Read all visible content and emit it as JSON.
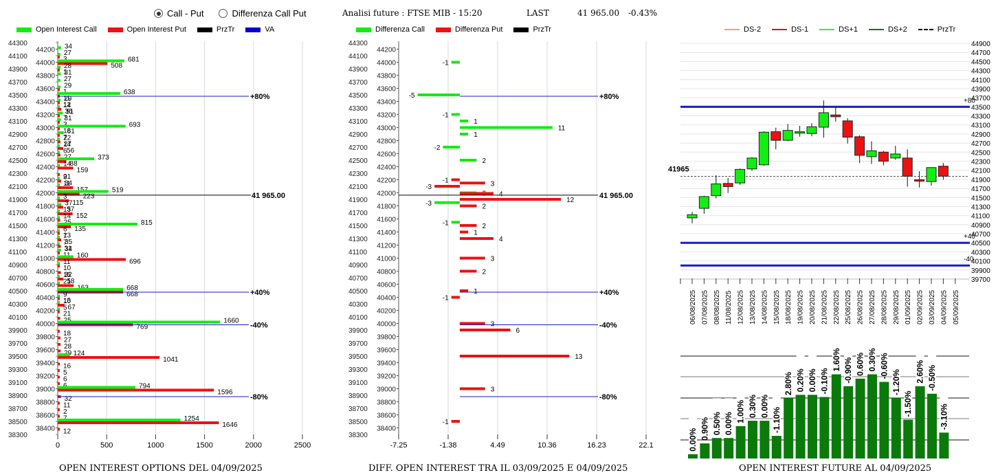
{
  "controls": {
    "mode_options": [
      {
        "label": "Call - Put",
        "selected": true
      },
      {
        "label": "Differenza Call Put",
        "selected": false
      }
    ]
  },
  "header": {
    "title": "Analisi future : FTSE MIB - 15:20",
    "last_label": "LAST",
    "last_value": "41 965.00",
    "change": "-0.43%"
  },
  "colors": {
    "call": "#11ee11",
    "put": "#ee1111",
    "prztr": "#000000",
    "va": "#1a1acc",
    "ds_minus2": "#f4a070",
    "ds_minus1": "#dd1111",
    "ds_plus1": "#33ee33",
    "ds_plus2": "#117711",
    "volume_bar": "#0a7a0a"
  },
  "chart_data": [
    {
      "type": "bar",
      "title": "OPEN INTEREST OPTIONS DEL 04/09/2025",
      "orientation": "horizontal",
      "legend": [
        "Open Interest Call",
        "Open Interest Put",
        "PrzTr",
        "VA"
      ],
      "legend_position": "top",
      "xlim": [
        0,
        2500
      ],
      "x_ticks": [
        "0",
        "500",
        "1000",
        "1500",
        "2000",
        "2500"
      ],
      "y_ticks_left": [
        "44300",
        "44100",
        "43900",
        "43700",
        "43500",
        "43300",
        "43100",
        "42900",
        "42700",
        "42500",
        "42300",
        "42100",
        "41900",
        "41700",
        "41500",
        "41300",
        "41100",
        "40900",
        "40700",
        "40500",
        "40300",
        "40100",
        "39900",
        "39700",
        "39500",
        "39300",
        "39100",
        "38900",
        "38700",
        "38500",
        "38300"
      ],
      "y_ticks_right": [
        "44200",
        "44000",
        "43800",
        "43600",
        "43400",
        "43200",
        "43000",
        "42800",
        "42600",
        "42400",
        "42200",
        "42000",
        "41800",
        "41600",
        "41400",
        "41200",
        "41000",
        "40800",
        "40600",
        "40400",
        "40200",
        "40000",
        "39800",
        "39600",
        "39400",
        "39200",
        "39000",
        "38800",
        "38600",
        "38400"
      ],
      "strikes": [
        {
          "strike": 44200,
          "call": 34,
          "put": 0
        },
        {
          "strike": 44100,
          "call": 27,
          "put": 3
        },
        {
          "strike": 44000,
          "call": 681,
          "put": 508
        },
        {
          "strike": 43900,
          "call": 28,
          "put": 1
        },
        {
          "strike": 43800,
          "call": 31,
          "put": 0
        },
        {
          "strike": 43700,
          "call": 27,
          "put": 0
        },
        {
          "strike": 43600,
          "call": 29,
          "put": 1
        },
        {
          "strike": 43500,
          "call": 638,
          "put": 11
        },
        {
          "strike": 43400,
          "call": 29,
          "put": 12
        },
        {
          "strike": 43300,
          "call": 14,
          "put": 36
        },
        {
          "strike": 43200,
          "call": 51,
          "put": 7
        },
        {
          "strike": 43100,
          "call": 31,
          "put": 3
        },
        {
          "strike": 43000,
          "call": 693,
          "put": 18
        },
        {
          "strike": 42900,
          "call": 61,
          "put": 7
        },
        {
          "strike": 42800,
          "call": 22,
          "put": 27
        },
        {
          "strike": 42700,
          "call": 14,
          "put": 56
        },
        {
          "strike": 42600,
          "call": 6,
          "put": 27
        },
        {
          "strike": 42500,
          "call": 373,
          "put": 88
        },
        {
          "strike": 42400,
          "call": 14,
          "put": 159
        },
        {
          "strike": 42300,
          "call": 0,
          "put": 21
        },
        {
          "strike": 42200,
          "call": 9,
          "put": 34
        },
        {
          "strike": 42100,
          "call": 11,
          "put": 157
        },
        {
          "strike": 42000,
          "call": 519,
          "put": 223
        },
        {
          "strike": 41900,
          "call": 3,
          "put": 115
        },
        {
          "strike": 41800,
          "call": 37,
          "put": 57
        },
        {
          "strike": 41700,
          "call": 13,
          "put": 152
        },
        {
          "strike": 41600,
          "call": 14,
          "put": 25
        },
        {
          "strike": 41500,
          "call": 815,
          "put": 135
        },
        {
          "strike": 41400,
          "call": 6,
          "put": 13
        },
        {
          "strike": 41300,
          "call": 7,
          "put": 35
        },
        {
          "strike": 41200,
          "call": 7,
          "put": 31
        },
        {
          "strike": 41100,
          "call": 34,
          "put": 11
        },
        {
          "strike": 41000,
          "call": 160,
          "put": 696
        },
        {
          "strike": 40900,
          "call": 11,
          "put": 10
        },
        {
          "strike": 40800,
          "call": 0,
          "put": 32
        },
        {
          "strike": 40700,
          "call": 15,
          "put": 58
        },
        {
          "strike": 40600,
          "call": 21,
          "put": 163
        },
        {
          "strike": 40500,
          "call": 668,
          "put": 668
        },
        {
          "strike": 40400,
          "call": 9,
          "put": 15
        },
        {
          "strike": 40300,
          "call": 10,
          "put": 67
        },
        {
          "strike": 40200,
          "call": 5,
          "put": 21
        },
        {
          "strike": 40100,
          "call": 0,
          "put": 25
        },
        {
          "strike": 40000,
          "call": 1660,
          "put": 769
        },
        {
          "strike": 39900,
          "call": 0,
          "put": 18
        },
        {
          "strike": 39800,
          "call": 0,
          "put": 27
        },
        {
          "strike": 39700,
          "call": 0,
          "put": 28
        },
        {
          "strike": 39600,
          "call": 0,
          "put": 29
        },
        {
          "strike": 39500,
          "call": 124,
          "put": 1041
        },
        {
          "strike": 39400,
          "call": 0,
          "put": 16
        },
        {
          "strike": 39300,
          "call": 0,
          "put": 5
        },
        {
          "strike": 39200,
          "call": 0,
          "put": 6
        },
        {
          "strike": 39100,
          "call": 0,
          "put": 6
        },
        {
          "strike": 39000,
          "call": 794,
          "put": 1596
        },
        {
          "strike": 38900,
          "call": 0,
          "put": 32
        },
        {
          "strike": 38800,
          "call": 0,
          "put": 11
        },
        {
          "strike": 38700,
          "call": 0,
          "put": 2
        },
        {
          "strike": 38600,
          "call": 0,
          "put": 7
        },
        {
          "strike": 38500,
          "call": 1254,
          "put": 1646
        },
        {
          "strike": 38400,
          "call": 0,
          "put": 12
        }
      ],
      "reference_lines": [
        {
          "label": "+80%",
          "level": 43500,
          "type": "va"
        },
        {
          "label": "41 965.00",
          "level": 41965,
          "type": "prztr"
        },
        {
          "label": "+40%",
          "level": 40500,
          "type": "va"
        },
        {
          "label": "-40%",
          "level": 40000,
          "type": "va"
        },
        {
          "label": "-80%",
          "level": 38900,
          "type": "va"
        }
      ]
    },
    {
      "type": "bar",
      "title": "DIFF. OPEN INTEREST TRA IL 03/09/2025 E 04/09/2025",
      "orientation": "horizontal",
      "legend": [
        "Differenza Call",
        "Differenza Put",
        "PrzTr"
      ],
      "legend_position": "top",
      "xlim": [
        -7.25,
        22.1
      ],
      "x_ticks": [
        "-7.25",
        "-1.38",
        "4.49",
        "10.36",
        "16.23",
        "22.1"
      ],
      "diffs": [
        {
          "strike": 44000,
          "series": "call",
          "value": -1
        },
        {
          "strike": 43500,
          "series": "call",
          "value": -5
        },
        {
          "strike": 43200,
          "series": "call",
          "value": -1
        },
        {
          "strike": 43100,
          "series": "call",
          "value": 1
        },
        {
          "strike": 43000,
          "series": "call",
          "value": 11
        },
        {
          "strike": 42900,
          "series": "call",
          "value": 1
        },
        {
          "strike": 42700,
          "series": "call",
          "value": -2
        },
        {
          "strike": 42500,
          "series": "call",
          "value": 2
        },
        {
          "strike": 42200,
          "series": "put",
          "value": -1
        },
        {
          "strike": 42150,
          "series": "put",
          "value": 3
        },
        {
          "strike": 42100,
          "series": "put",
          "value": -3
        },
        {
          "strike": 42000,
          "series": "call",
          "value": 2
        },
        {
          "strike": 41990,
          "series": "put",
          "value": 4
        },
        {
          "strike": 41900,
          "series": "put",
          "value": 12
        },
        {
          "strike": 41850,
          "series": "call",
          "value": -3
        },
        {
          "strike": 41800,
          "series": "put",
          "value": 2
        },
        {
          "strike": 41550,
          "series": "call",
          "value": -1
        },
        {
          "strike": 41500,
          "series": "put",
          "value": 2
        },
        {
          "strike": 41400,
          "series": "put",
          "value": 1
        },
        {
          "strike": 41300,
          "series": "put",
          "value": 4
        },
        {
          "strike": 41000,
          "series": "put",
          "value": 3
        },
        {
          "strike": 40800,
          "series": "put",
          "value": 2
        },
        {
          "strike": 40500,
          "series": "put",
          "value": 1
        },
        {
          "strike": 40400,
          "series": "put",
          "value": -1
        },
        {
          "strike": 40000,
          "series": "put",
          "value": 3
        },
        {
          "strike": 39900,
          "series": "put",
          "value": 6
        },
        {
          "strike": 39500,
          "series": "put",
          "value": 13
        },
        {
          "strike": 39000,
          "series": "put",
          "value": 3
        },
        {
          "strike": 38500,
          "series": "put",
          "value": -1
        }
      ],
      "reference_lines": [
        {
          "label": "+80%",
          "level": 43500,
          "type": "va"
        },
        {
          "label": "41 965.00",
          "level": 41965,
          "type": "prztr"
        },
        {
          "label": "+40%",
          "level": 40500,
          "type": "va"
        },
        {
          "label": "-40%",
          "level": 40000,
          "type": "va"
        },
        {
          "label": "-80%",
          "level": 38900,
          "type": "va"
        }
      ]
    },
    {
      "type": "candlestick",
      "title": "",
      "legend": [
        "DS-2",
        "DS-1",
        "DS+1",
        "DS+2",
        "PrzTr"
      ],
      "legend_position": "top",
      "ylim": [
        39700,
        44900
      ],
      "y_ticks": [
        "44900",
        "44700",
        "44500",
        "44300",
        "44100",
        "43900",
        "43700",
        "43500",
        "43300",
        "43100",
        "42900",
        "42700",
        "42500",
        "42300",
        "42100",
        "41900",
        "41700",
        "41500",
        "41300",
        "41100",
        "40900",
        "40700",
        "40500",
        "40300",
        "40100",
        "39900",
        "39700"
      ],
      "price_label": "41965",
      "price_level": 41965,
      "level_lines": [
        {
          "label": "+80",
          "level": 43500
        },
        {
          "label": "+40",
          "level": 40500
        },
        {
          "label": "-40",
          "level": 40000
        }
      ],
      "candles": [
        {
          "date": "06/08/2025",
          "open": 41050,
          "high": 41180,
          "low": 40930,
          "close": 41120
        },
        {
          "date": "07/08/2025",
          "open": 41260,
          "high": 41540,
          "low": 41140,
          "close": 41520
        },
        {
          "date": "08/08/2025",
          "open": 41540,
          "high": 41990,
          "low": 41480,
          "close": 41800
        },
        {
          "date": "11/08/2025",
          "open": 41810,
          "high": 41930,
          "low": 41600,
          "close": 41740
        },
        {
          "date": "12/08/2025",
          "open": 41820,
          "high": 42140,
          "low": 41780,
          "close": 42120
        },
        {
          "date": "13/08/2025",
          "open": 42130,
          "high": 42390,
          "low": 42090,
          "close": 42370
        },
        {
          "date": "14/08/2025",
          "open": 42220,
          "high": 42960,
          "low": 42200,
          "close": 42940
        },
        {
          "date": "15/08/2025",
          "open": 42950,
          "high": 43040,
          "low": 42560,
          "close": 42760
        },
        {
          "date": "18/08/2025",
          "open": 42760,
          "high": 43120,
          "low": 42740,
          "close": 42980
        },
        {
          "date": "19/08/2025",
          "open": 42930,
          "high": 43080,
          "low": 42840,
          "close": 42950
        },
        {
          "date": "20/08/2025",
          "open": 42910,
          "high": 43140,
          "low": 42850,
          "close": 43060
        },
        {
          "date": "21/08/2025",
          "open": 43050,
          "high": 43640,
          "low": 42820,
          "close": 43370
        },
        {
          "date": "22/08/2025",
          "open": 43320,
          "high": 43490,
          "low": 43170,
          "close": 43280
        },
        {
          "date": "25/08/2025",
          "open": 43190,
          "high": 43250,
          "low": 42690,
          "close": 42830
        },
        {
          "date": "26/08/2025",
          "open": 42840,
          "high": 42870,
          "low": 42260,
          "close": 42430
        },
        {
          "date": "27/08/2025",
          "open": 42400,
          "high": 42740,
          "low": 42240,
          "close": 42530
        },
        {
          "date": "28/08/2025",
          "open": 42500,
          "high": 42530,
          "low": 42210,
          "close": 42300
        },
        {
          "date": "29/08/2025",
          "open": 42370,
          "high": 42640,
          "low": 42330,
          "close": 42460
        },
        {
          "date": "01/09/2025",
          "open": 42370,
          "high": 42560,
          "low": 41740,
          "close": 41970
        },
        {
          "date": "02/09/2025",
          "open": 41890,
          "high": 42080,
          "low": 41720,
          "close": 41860
        },
        {
          "date": "03/09/2025",
          "open": 41850,
          "high": 42160,
          "low": 41760,
          "close": 42160
        },
        {
          "date": "04/09/2025",
          "open": 42190,
          "high": 42260,
          "low": 41890,
          "close": 41970
        }
      ],
      "x_tick_labels": [
        "06/08/2025",
        "07/08/2025",
        "08/08/2025",
        "11/08/2025",
        "12/08/2025",
        "13/08/2025",
        "14/08/2025",
        "15/08/2025",
        "18/08/2025",
        "19/08/2025",
        "20/08/2025",
        "21/08/2025",
        "22/08/2025",
        "25/08/2025",
        "26/08/2025",
        "27/08/2025",
        "28/08/2025",
        "29/08/2025",
        "01/09/2025",
        "02/09/2025",
        "03/09/2025",
        "04/09/2025",
        "05/09/2025"
      ]
    },
    {
      "type": "bar",
      "title": "OPEN INTEREST FUTURE AL 04/09/2025",
      "categories": [
        "06/08/2025",
        "07/08/2025",
        "08/08/2025",
        "11/08/2025",
        "12/08/2025",
        "13/08/2025",
        "14/08/2025",
        "15/08/2025",
        "18/08/2025",
        "19/08/2025",
        "20/08/2025",
        "21/08/2025",
        "22/08/2025",
        "25/08/2025",
        "26/08/2025",
        "27/08/2025",
        "28/08/2025",
        "29/08/2025",
        "01/09/2025",
        "02/09/2025",
        "03/09/2025",
        "04/09/2025"
      ],
      "relative_values": [
        0.04,
        0.14,
        0.19,
        0.19,
        0.3,
        0.35,
        0.35,
        0.21,
        0.56,
        0.59,
        0.59,
        0.57,
        0.78,
        0.67,
        0.74,
        0.78,
        0.71,
        0.56,
        0.36,
        0.67,
        0.6,
        0.24
      ],
      "data_labels": [
        "0.00%",
        "0.90%",
        "0.50%",
        "0.00%",
        "1.00%",
        "0.30%",
        "0.00%",
        "-1.10%",
        "2.80%",
        "0.20%",
        "0.00%",
        "-0.10%",
        "1.60%",
        "-0.90%",
        "0.60%",
        "0.30%",
        "-0.60%",
        "-1.20%",
        "-1.50%",
        "2.60%",
        "-0.50%",
        "-3.10%"
      ],
      "grid": true
    }
  ]
}
